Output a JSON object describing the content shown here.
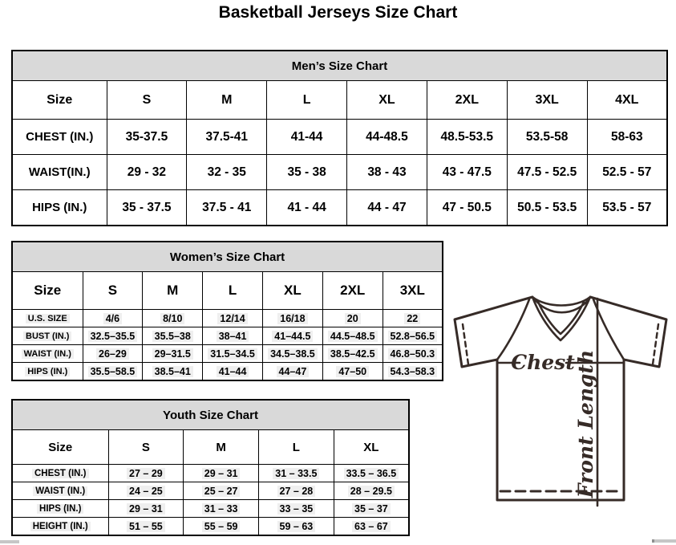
{
  "page_title": "Basketball Jerseys Size Chart",
  "mens": {
    "title": "Men’s Size Chart",
    "columns": [
      "Size",
      "S",
      "M",
      "L",
      "XL",
      "2XL",
      "3XL",
      "4XL"
    ],
    "rows": [
      {
        "label": "CHEST (IN.)",
        "values": [
          "35-37.5",
          "37.5-41",
          "41-44",
          "44-48.5",
          "48.5-53.5",
          "53.5-58",
          "58-63"
        ]
      },
      {
        "label": "WAIST(IN.)",
        "values": [
          "29 - 32",
          "32 - 35",
          "35 - 38",
          "38 - 43",
          "43 - 47.5",
          "47.5 - 52.5",
          "52.5 - 57"
        ]
      },
      {
        "label": "HIPS (IN.)",
        "values": [
          "35 - 37.5",
          "37.5 - 41",
          "41 - 44",
          "44 - 47",
          "47 - 50.5",
          "50.5 - 53.5",
          "53.5 - 57"
        ]
      }
    ]
  },
  "womens": {
    "title": "Women’s Size Chart",
    "columns": [
      "Size",
      "S",
      "M",
      "L",
      "XL",
      "2XL",
      "3XL"
    ],
    "rows": [
      {
        "label": "U.S. SIZE",
        "values": [
          "4/6",
          "8/10",
          "12/14",
          "16/18",
          "20",
          "22"
        ]
      },
      {
        "label": "BUST (IN.)",
        "values": [
          "32.5–35.5",
          "35.5–38",
          "38–41",
          "41–44.5",
          "44.5–48.5",
          "52.8–56.5"
        ]
      },
      {
        "label": "WAIST (IN.)",
        "values": [
          "26–29",
          "29–31.5",
          "31.5–34.5",
          "34.5–38.5",
          "38.5–42.5",
          "46.8–50.3"
        ]
      },
      {
        "label": "HIPS (IN.)",
        "values": [
          "35.5–58.5",
          "38.5–41",
          "41–44",
          "44–47",
          "47–50",
          "54.3–58.3"
        ]
      }
    ]
  },
  "youth": {
    "title": "Youth Size Chart",
    "columns": [
      "Size",
      "S",
      "M",
      "L",
      "XL"
    ],
    "rows": [
      {
        "label": "CHEST (IN.)",
        "values": [
          "27 – 29",
          "29 – 31",
          "31 – 33.5",
          "33.5 – 36.5"
        ]
      },
      {
        "label": "WAIST (IN.)",
        "values": [
          "24 – 25",
          "25 – 27",
          "27 – 28",
          "28 – 29.5"
        ]
      },
      {
        "label": "HIPS (IN.)",
        "values": [
          "29 – 31",
          "31 – 33",
          "33 – 35",
          "35 – 37"
        ]
      },
      {
        "label": "HEIGHT (IN.)",
        "values": [
          "51 – 55",
          "55 – 59",
          "59 – 63",
          "63 – 67"
        ]
      }
    ]
  },
  "diagram": {
    "chest_label": "Chest",
    "front_length_label": "Front Length"
  },
  "colors": {
    "band_gray": "#d9d9d9",
    "jersey_line": "#362b27",
    "value_highlight": "#efefef"
  }
}
